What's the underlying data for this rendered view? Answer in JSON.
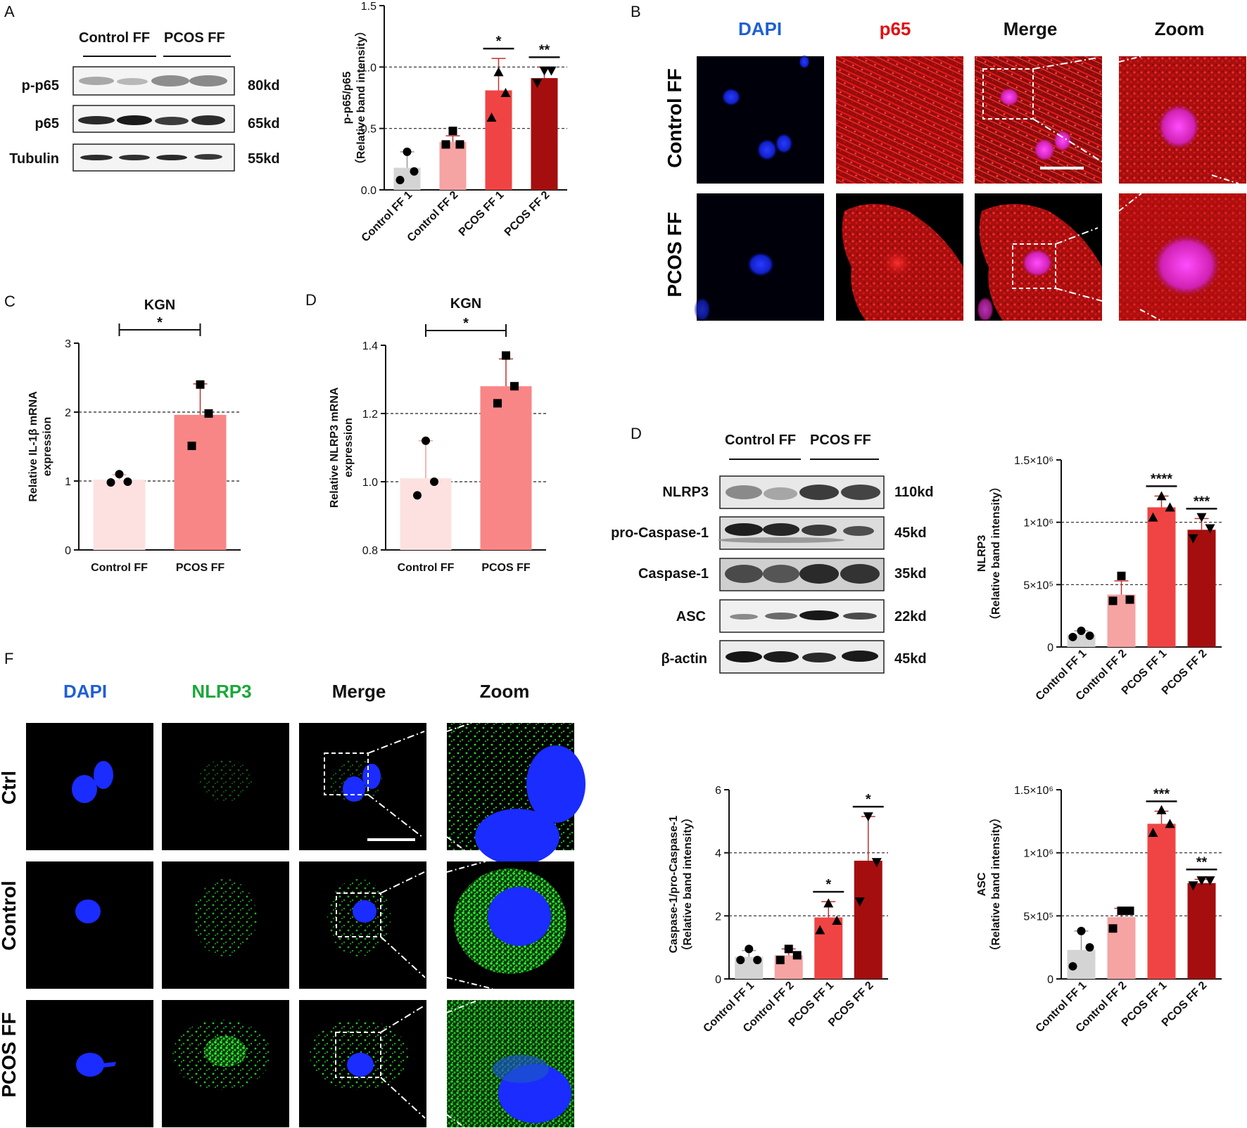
{
  "panels": {
    "A": "A",
    "B": "B",
    "C": "C",
    "D1": "D",
    "D2": "D",
    "F": "F"
  },
  "blotA": {
    "groups": [
      "Control FF",
      "PCOS FF"
    ],
    "rows": [
      {
        "name": "p-p65",
        "kd": "80kd"
      },
      {
        "name": "p65",
        "kd": "65kd"
      },
      {
        "name": "Tubulin",
        "kd": "55kd"
      }
    ]
  },
  "blotD": {
    "groups": [
      "Control FF",
      "PCOS FF"
    ],
    "rows": [
      {
        "name": "NLRP3",
        "kd": "110kd"
      },
      {
        "name": "pro-Caspase-1",
        "kd": "45kd"
      },
      {
        "name": "Caspase-1",
        "kd": "35kd"
      },
      {
        "name": "ASC",
        "kd": "22kd"
      },
      {
        "name": "β-actin",
        "kd": "45kd"
      }
    ]
  },
  "imgB": {
    "cols": [
      "DAPI",
      "p65",
      "Merge",
      "Zoom"
    ],
    "col_colors": [
      "#1f5fd6",
      "#e01010",
      "#111111",
      "#111111"
    ],
    "rows": [
      "Control FF",
      "PCOS FF"
    ]
  },
  "imgF": {
    "cols": [
      "DAPI",
      "NLRP3",
      "Merge",
      "Zoom"
    ],
    "col_colors": [
      "#1f5fd6",
      "#1aa83a",
      "#111111",
      "#111111"
    ],
    "rows": [
      "Ctrl",
      "Control",
      "PCOS FF"
    ]
  },
  "chart_data": [
    {
      "id": "A",
      "type": "bar",
      "categories": [
        "Control FF 1",
        "Control FF 2",
        "PCOS FF 1",
        "PCOS FF 2"
      ],
      "values": [
        0.18,
        0.39,
        0.81,
        0.91
      ],
      "errors": [
        0.13,
        0.05,
        0.26,
        0.09
      ],
      "points": [
        [
          0.31,
          0.15,
          0.08
        ],
        [
          0.48,
          0.37,
          0.37
        ],
        [
          0.96,
          0.79,
          0.59
        ],
        [
          0.97,
          0.97,
          0.87
        ]
      ],
      "colors": [
        "#d4d4d4",
        "#f6a3a3",
        "#f04444",
        "#a50e0e"
      ],
      "ylabel": [
        "p-p65/p65",
        "（Relative band intensity）"
      ],
      "ylim": [
        0,
        1.5
      ],
      "yticks": [
        "0.0",
        "0.5",
        "1.0",
        "1.5"
      ],
      "grid": [
        0.5,
        1.0
      ],
      "significance": [
        "",
        "",
        "*",
        "**"
      ]
    },
    {
      "id": "C",
      "type": "bar",
      "title": "KGN",
      "categories": [
        "Control FF",
        "PCOS FF"
      ],
      "values": [
        1.02,
        1.96
      ],
      "errors": [
        0.07,
        0.45
      ],
      "points": [
        [
          1.1,
          0.99,
          0.98
        ],
        [
          2.4,
          1.98,
          1.51
        ]
      ],
      "colors": [
        "#fde1e1",
        "#f98686"
      ],
      "ylabel": [
        "Relative IL-1β mRNA",
        "expression"
      ],
      "ylim": [
        0,
        3
      ],
      "yticks": [
        "0",
        "1",
        "2",
        "3"
      ],
      "grid": [
        1,
        2
      ],
      "bracket": "*"
    },
    {
      "id": "D",
      "type": "bar",
      "title": "KGN",
      "categories": [
        "Control FF",
        "PCOS FF"
      ],
      "values": [
        1.01,
        1.28
      ],
      "errors": [
        0.11,
        0.08
      ],
      "points": [
        [
          1.12,
          1.0,
          0.96
        ],
        [
          1.37,
          1.28,
          1.23
        ]
      ],
      "colors": [
        "#fde1e1",
        "#f98686"
      ],
      "ylabel": [
        "Relative NLRP3 mRNA",
        "expression"
      ],
      "ylim": [
        0.8,
        1.4
      ],
      "yticks": [
        "0.8",
        "1.0",
        "1.2",
        "1.4"
      ],
      "grid": [
        1.0,
        1.2
      ],
      "bracket": "*"
    },
    {
      "id": "NLRP3",
      "type": "bar",
      "categories": [
        "Control FF 1",
        "Control FF 2",
        "PCOS FF 1",
        "PCOS FF 2"
      ],
      "values": [
        100000,
        420000,
        1120000,
        940000
      ],
      "errors": [
        30000,
        110000,
        90000,
        90000
      ],
      "points": [
        [
          130000,
          90000,
          80000
        ],
        [
          570000,
          380000,
          370000
        ],
        [
          1210000,
          1120000,
          1040000
        ],
        [
          1040000,
          950000,
          870000
        ]
      ],
      "colors": [
        "#d4d4d4",
        "#f6a3a3",
        "#f04444",
        "#a50e0e"
      ],
      "ylabel": [
        "NLRP3",
        "（Relative band intensity）"
      ],
      "ylim": [
        0,
        1500000
      ],
      "yticks": [
        "0",
        "5×10⁵",
        "1×10⁶",
        "1.5×10⁶"
      ],
      "grid": [
        500000,
        1000000
      ],
      "significance": [
        "",
        "",
        "****",
        "***"
      ]
    },
    {
      "id": "Caspase",
      "type": "bar",
      "categories": [
        "Control FF 1",
        "Control FF 2",
        "PCOS FF 1",
        "PCOS FF 2"
      ],
      "values": [
        0.7,
        0.75,
        1.95,
        3.75
      ],
      "errors": [
        0.2,
        0.2,
        0.5,
        1.4
      ],
      "points": [
        [
          0.95,
          0.6,
          0.6
        ],
        [
          0.95,
          0.75,
          0.6
        ],
        [
          2.4,
          1.85,
          1.55
        ],
        [
          5.15,
          3.7,
          2.45
        ]
      ],
      "colors": [
        "#d4d4d4",
        "#f6a3a3",
        "#f04444",
        "#a50e0e"
      ],
      "ylabel": [
        "Caspase-1/pro-Caspase-1",
        "（Relative band intensity）"
      ],
      "ylim": [
        0,
        6
      ],
      "yticks": [
        "0",
        "2",
        "4",
        "6"
      ],
      "grid": [
        2,
        4
      ],
      "significance": [
        "",
        "",
        "*",
        "*"
      ]
    },
    {
      "id": "ASC",
      "type": "bar",
      "categories": [
        "Control FF 1",
        "Control FF 2",
        "PCOS FF 1",
        "PCOS FF 2"
      ],
      "values": [
        230000,
        490000,
        1230000,
        760000
      ],
      "errors": [
        150000,
        70000,
        100000,
        30000
      ],
      "points": [
        [
          380000,
          250000,
          100000
        ],
        [
          540000,
          540000,
          400000
        ],
        [
          1340000,
          1230000,
          1160000
        ],
        [
          780000,
          780000,
          740000
        ]
      ],
      "colors": [
        "#d4d4d4",
        "#f6a3a3",
        "#f04444",
        "#a50e0e"
      ],
      "ylabel": [
        "ASC",
        "（Relative band intensity）"
      ],
      "ylim": [
        0,
        1500000
      ],
      "yticks": [
        "0",
        "5×10⁵",
        "1×10⁶",
        "1.5×10⁶"
      ],
      "grid": [
        500000,
        1000000
      ],
      "significance": [
        "",
        "",
        "***",
        "**"
      ]
    }
  ]
}
